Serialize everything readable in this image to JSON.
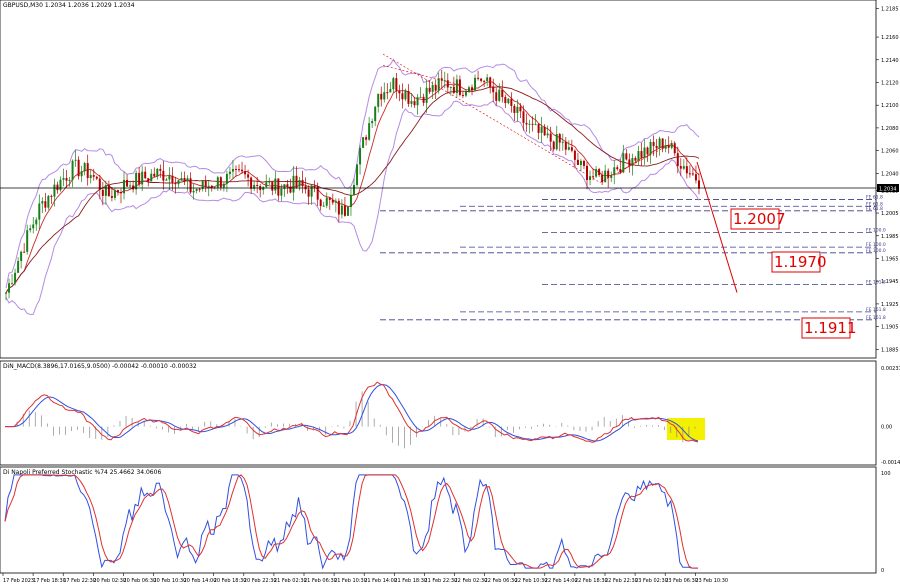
{
  "chart_data": {
    "type": "candlestick",
    "symbol": "GBPUSD,M30",
    "ohlc_text": "1.2034 1.2036 1.2029 1.2034",
    "price_axis": {
      "min": 1.188,
      "max": 1.219,
      "ticks": [
        "1.2185",
        "1.2160",
        "1.2140",
        "1.2120",
        "1.2100",
        "1.2080",
        "1.2060",
        "1.2040",
        "1.2025",
        "1.2005",
        "1.1985",
        "1.1965",
        "1.1945",
        "1.1925",
        "1.1905",
        "1.1885"
      ],
      "current_price": "1.2034"
    },
    "x_labels": [
      "17 Feb 2023",
      "17 Feb 18:30",
      "17 Feb 22:30",
      "20 Feb 02:30",
      "20 Feb 06:30",
      "20 Feb 10:30",
      "20 Feb 14:00",
      "20 Feb 18:30",
      "20 Feb 22:30",
      "21 Feb 02:30",
      "21 Feb 06:30",
      "21 Feb 10:30",
      "21 Feb 14:00",
      "21 Feb 18:30",
      "21 Feb 22:30",
      "22 Feb 02:30",
      "22 Feb 06:30",
      "22 Feb 10:30",
      "22 Feb 14:00",
      "22 Feb 18:30",
      "22 Feb 22:30",
      "23 Feb 02:30",
      "23 Feb 06:30",
      "23 Feb 10:30"
    ],
    "close_path": [
      1.1935,
      1.1975,
      1.201,
      1.203,
      1.2045,
      1.204,
      1.202,
      1.203,
      1.2035,
      1.204,
      1.2038,
      1.2025,
      1.203,
      1.2035,
      1.2038,
      1.203,
      1.2028,
      1.203,
      1.2025,
      1.2015,
      1.2005,
      1.206,
      1.211,
      1.212,
      1.2105,
      1.2112,
      1.212,
      1.2115,
      1.2125,
      1.211,
      1.2095,
      1.208,
      1.207,
      1.2065,
      1.2045,
      1.2035,
      1.2045,
      1.2055,
      1.206,
      1.2068,
      1.2048,
      1.2034
    ],
    "fib_levels": [
      {
        "label": "FE 61.8",
        "price": 1.2017
      },
      {
        "label": "FE 61.8",
        "price": 1.2011
      },
      {
        "label": "FE 61.8",
        "price": 1.2007
      },
      {
        "label": "FE 100.0",
        "price": 1.1988
      },
      {
        "label": "FE 100.0",
        "price": 1.1975
      },
      {
        "label": "FE 100.0",
        "price": 1.197
      },
      {
        "label": "FE 161.8",
        "price": 1.1942
      },
      {
        "label": "FE 161.8",
        "price": 1.1918
      },
      {
        "label": "FE 161.8",
        "price": 1.1911
      }
    ],
    "targets": [
      "1.2007",
      "1.1970",
      "1.1911"
    ],
    "macd": {
      "title": "DiN_MACD(8.3896,17.0165,9.0500) -0.00042 -0.00010 -0.00032",
      "ticks": [
        "0.00237",
        "0.00",
        "-0.00143"
      ],
      "range": [
        -0.00143,
        0.00237
      ]
    },
    "stoch": {
      "title": "Di Napoli Preferred Stochastic %74 25.4662 34.0606",
      "ticks": [
        "100",
        "0"
      ],
      "range": [
        0,
        100
      ]
    }
  },
  "colors": {
    "bull": "#1a7f1a",
    "bear": "#b00000",
    "ma_fast": "#cc2a2a",
    "ma_slow": "#8b1c1c",
    "bands": "#b58be6",
    "fib": "#3b3b8c",
    "target": "#e00000",
    "macd": "#3050e0",
    "signal": "#e03030",
    "highlight": "#f3f000"
  }
}
